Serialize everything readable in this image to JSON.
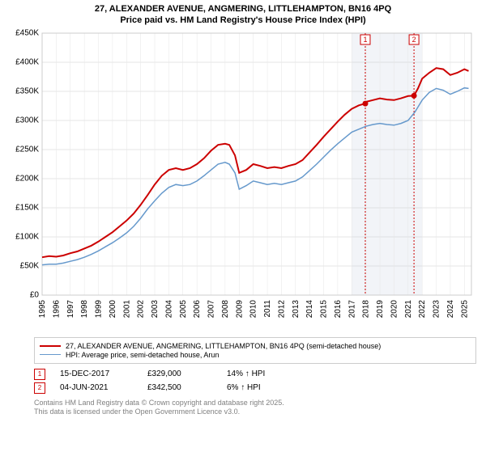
{
  "title_line1": "27, ALEXANDER AVENUE, ANGMERING, LITTLEHAMPTON, BN16 4PQ",
  "title_line2": "Price paid vs. HM Land Registry's House Price Index (HPI)",
  "chart": {
    "type": "line",
    "background_color": "#ffffff",
    "grid_color_major": "#cccccc",
    "grid_color_minor": "#e6e6e6",
    "axis_color": "#cccccc",
    "shade_color": "#e6eaf2",
    "shade_start_year": 2017.0,
    "shade_end_year": 2022.0,
    "x_start": 1995,
    "x_end": 2025.5,
    "x_ticks": [
      1995,
      1996,
      1997,
      1998,
      1999,
      2000,
      2001,
      2002,
      2003,
      2004,
      2005,
      2006,
      2007,
      2008,
      2009,
      2010,
      2011,
      2012,
      2013,
      2014,
      2015,
      2016,
      2017,
      2018,
      2019,
      2020,
      2021,
      2022,
      2023,
      2024,
      2025
    ],
    "y_min": 0,
    "y_max": 450000,
    "y_tick_step": 50000,
    "y_tick_labels": [
      "£0",
      "£50K",
      "£100K",
      "£150K",
      "£200K",
      "£250K",
      "£300K",
      "£350K",
      "£400K",
      "£450K"
    ],
    "series": [
      {
        "name": "property",
        "label": "27, ALEXANDER AVENUE, ANGMERING, LITTLEHAMPTON, BN16 4PQ (semi-detached house)",
        "color": "#cc0000",
        "line_width": 2,
        "data": [
          [
            1995,
            65000
          ],
          [
            1995.5,
            67000
          ],
          [
            1996,
            66000
          ],
          [
            1996.5,
            68000
          ],
          [
            1997,
            72000
          ],
          [
            1997.5,
            75000
          ],
          [
            1998,
            80000
          ],
          [
            1998.5,
            85000
          ],
          [
            1999,
            92000
          ],
          [
            1999.5,
            100000
          ],
          [
            2000,
            108000
          ],
          [
            2000.5,
            118000
          ],
          [
            2001,
            128000
          ],
          [
            2001.5,
            140000
          ],
          [
            2002,
            155000
          ],
          [
            2002.5,
            172000
          ],
          [
            2003,
            190000
          ],
          [
            2003.5,
            205000
          ],
          [
            2004,
            215000
          ],
          [
            2004.5,
            218000
          ],
          [
            2005,
            215000
          ],
          [
            2005.5,
            218000
          ],
          [
            2006,
            225000
          ],
          [
            2006.5,
            235000
          ],
          [
            2007,
            248000
          ],
          [
            2007.5,
            258000
          ],
          [
            2008,
            260000
          ],
          [
            2008.3,
            258000
          ],
          [
            2008.7,
            240000
          ],
          [
            2009,
            210000
          ],
          [
            2009.5,
            215000
          ],
          [
            2010,
            225000
          ],
          [
            2010.5,
            222000
          ],
          [
            2011,
            218000
          ],
          [
            2011.5,
            220000
          ],
          [
            2012,
            218000
          ],
          [
            2012.5,
            222000
          ],
          [
            2013,
            225000
          ],
          [
            2013.5,
            232000
          ],
          [
            2014,
            245000
          ],
          [
            2014.5,
            258000
          ],
          [
            2015,
            272000
          ],
          [
            2015.5,
            285000
          ],
          [
            2016,
            298000
          ],
          [
            2016.5,
            310000
          ],
          [
            2017,
            320000
          ],
          [
            2017.5,
            326000
          ],
          [
            2017.96,
            329000
          ],
          [
            2018,
            332000
          ],
          [
            2018.5,
            335000
          ],
          [
            2019,
            338000
          ],
          [
            2019.5,
            336000
          ],
          [
            2020,
            335000
          ],
          [
            2020.5,
            338000
          ],
          [
            2021,
            342000
          ],
          [
            2021.42,
            342500
          ],
          [
            2021.7,
            355000
          ],
          [
            2022,
            372000
          ],
          [
            2022.5,
            382000
          ],
          [
            2023,
            390000
          ],
          [
            2023.5,
            388000
          ],
          [
            2024,
            378000
          ],
          [
            2024.5,
            382000
          ],
          [
            2025,
            388000
          ],
          [
            2025.3,
            385000
          ]
        ]
      },
      {
        "name": "hpi",
        "label": "HPI: Average price, semi-detached house, Arun",
        "color": "#6699cc",
        "line_width": 1.5,
        "data": [
          [
            1995,
            52000
          ],
          [
            1995.5,
            53000
          ],
          [
            1996,
            53000
          ],
          [
            1996.5,
            55000
          ],
          [
            1997,
            58000
          ],
          [
            1997.5,
            61000
          ],
          [
            1998,
            65000
          ],
          [
            1998.5,
            70000
          ],
          [
            1999,
            76000
          ],
          [
            1999.5,
            83000
          ],
          [
            2000,
            90000
          ],
          [
            2000.5,
            98000
          ],
          [
            2001,
            107000
          ],
          [
            2001.5,
            118000
          ],
          [
            2002,
            132000
          ],
          [
            2002.5,
            148000
          ],
          [
            2003,
            162000
          ],
          [
            2003.5,
            175000
          ],
          [
            2004,
            185000
          ],
          [
            2004.5,
            190000
          ],
          [
            2005,
            188000
          ],
          [
            2005.5,
            190000
          ],
          [
            2006,
            196000
          ],
          [
            2006.5,
            205000
          ],
          [
            2007,
            215000
          ],
          [
            2007.5,
            225000
          ],
          [
            2008,
            228000
          ],
          [
            2008.3,
            225000
          ],
          [
            2008.7,
            210000
          ],
          [
            2009,
            182000
          ],
          [
            2009.5,
            188000
          ],
          [
            2010,
            196000
          ],
          [
            2010.5,
            193000
          ],
          [
            2011,
            190000
          ],
          [
            2011.5,
            192000
          ],
          [
            2012,
            190000
          ],
          [
            2012.5,
            193000
          ],
          [
            2013,
            196000
          ],
          [
            2013.5,
            203000
          ],
          [
            2014,
            214000
          ],
          [
            2014.5,
            225000
          ],
          [
            2015,
            237000
          ],
          [
            2015.5,
            249000
          ],
          [
            2016,
            260000
          ],
          [
            2016.5,
            270000
          ],
          [
            2017,
            280000
          ],
          [
            2017.5,
            285000
          ],
          [
            2018,
            290000
          ],
          [
            2018.5,
            293000
          ],
          [
            2019,
            295000
          ],
          [
            2019.5,
            293000
          ],
          [
            2020,
            292000
          ],
          [
            2020.5,
            295000
          ],
          [
            2021,
            300000
          ],
          [
            2021.5,
            315000
          ],
          [
            2022,
            335000
          ],
          [
            2022.5,
            348000
          ],
          [
            2023,
            355000
          ],
          [
            2023.5,
            352000
          ],
          [
            2024,
            345000
          ],
          [
            2024.5,
            350000
          ],
          [
            2025,
            356000
          ],
          [
            2025.3,
            355000
          ]
        ]
      }
    ],
    "markers": [
      {
        "n": "1",
        "year": 2017.96,
        "color": "#cc0000"
      },
      {
        "n": "2",
        "year": 2021.42,
        "color": "#cc0000"
      }
    ],
    "sale_points": [
      {
        "year": 2017.96,
        "value": 329000,
        "color": "#cc0000"
      },
      {
        "year": 2021.42,
        "value": 342500,
        "color": "#cc0000"
      }
    ]
  },
  "legend": [
    {
      "label": "27, ALEXANDER AVENUE, ANGMERING, LITTLEHAMPTON, BN16 4PQ (semi-detached house)",
      "color": "#cc0000",
      "width": 2
    },
    {
      "label": "HPI: Average price, semi-detached house, Arun",
      "color": "#6699cc",
      "width": 1
    }
  ],
  "notes": [
    {
      "n": "1",
      "color": "#cc0000",
      "date": "15-DEC-2017",
      "price": "£329,000",
      "delta": "14% ↑ HPI"
    },
    {
      "n": "2",
      "color": "#cc0000",
      "date": "04-JUN-2021",
      "price": "£342,500",
      "delta": "6% ↑ HPI"
    }
  ],
  "footer_line1": "Contains HM Land Registry data © Crown copyright and database right 2025.",
  "footer_line2": "This data is licensed under the Open Government Licence v3.0."
}
